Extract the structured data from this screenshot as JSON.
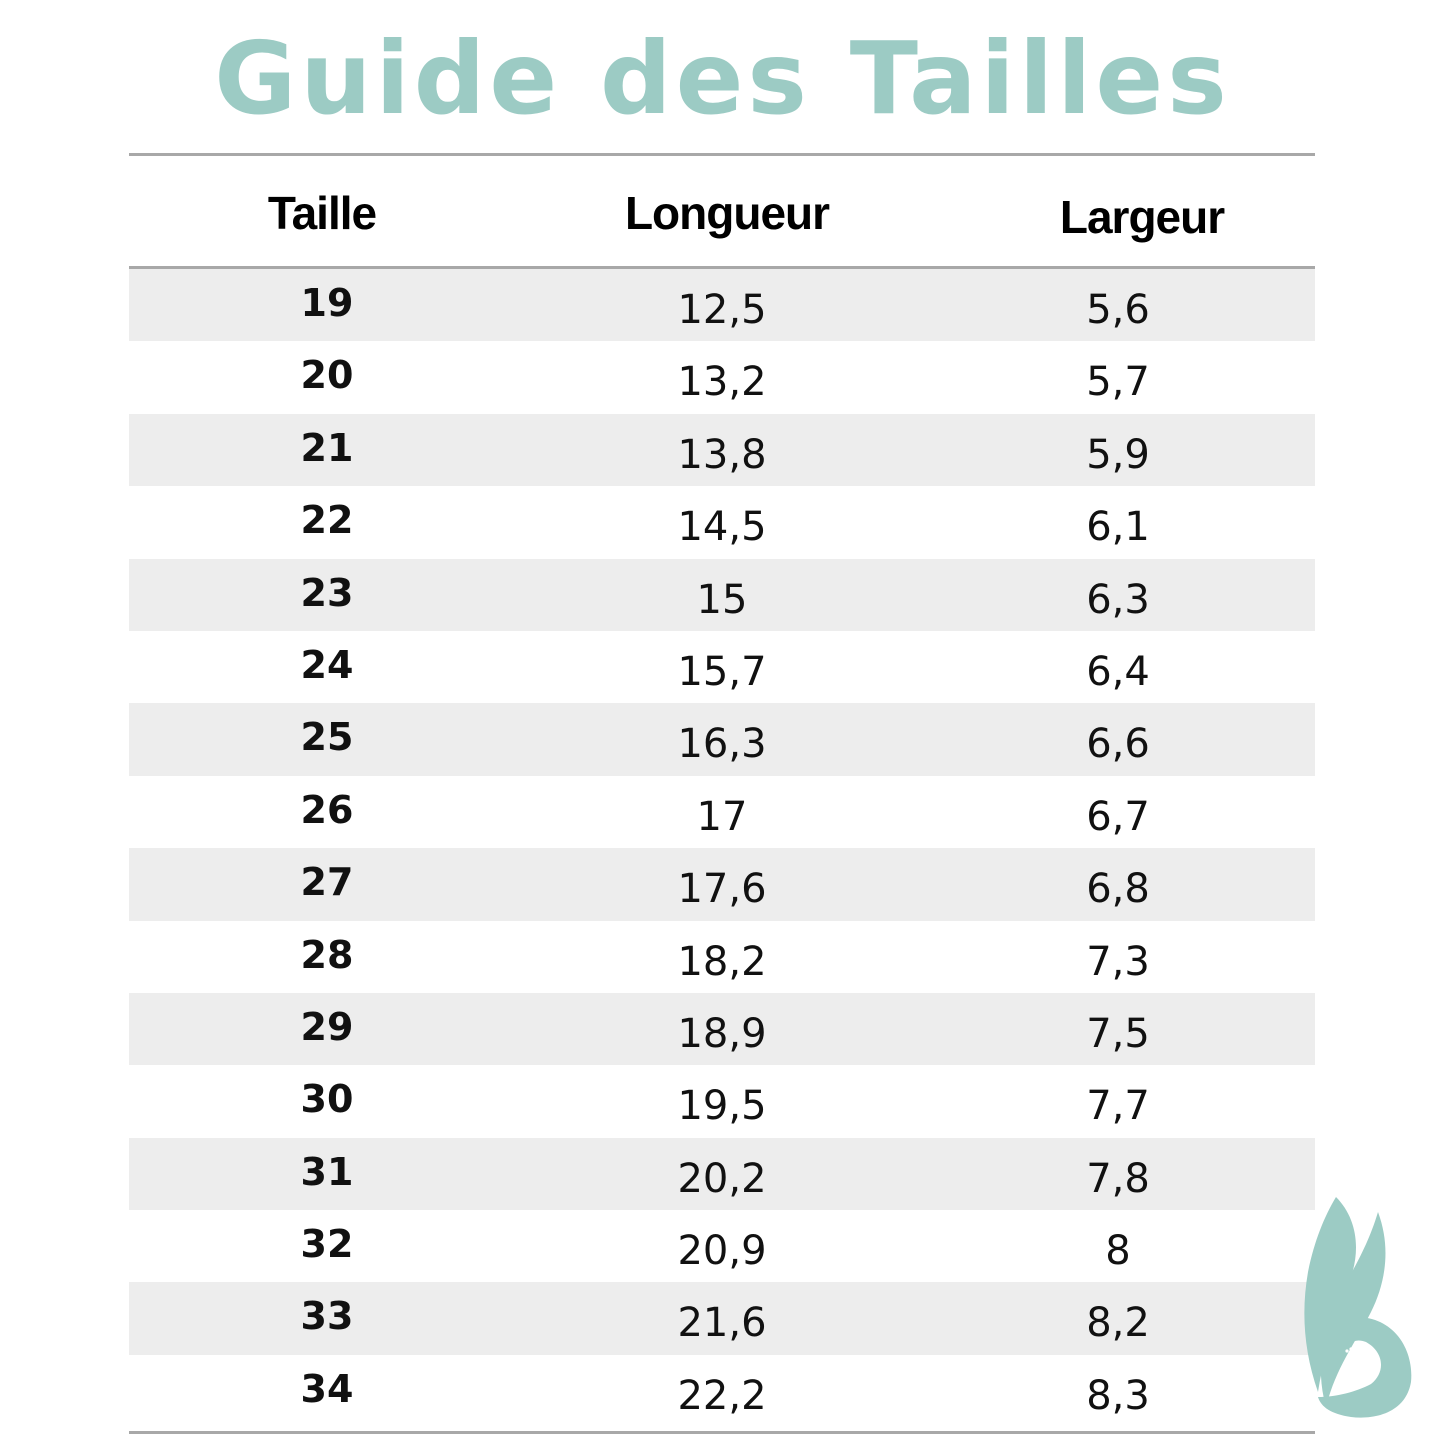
{
  "title": "Guide des Tailles",
  "colors": {
    "accent": "#9ccbc4",
    "row_shade": "#ededed",
    "rule": "#a8a8a8"
  },
  "table": {
    "headers": [
      "Taille",
      "Longueur",
      "Largeur"
    ],
    "rows": [
      [
        "19",
        "12,5",
        "5,6"
      ],
      [
        "20",
        "13,2",
        "5,7"
      ],
      [
        "21",
        "13,8",
        "5,9"
      ],
      [
        "22",
        "14,5",
        "6,1"
      ],
      [
        "23",
        "15",
        "6,3"
      ],
      [
        "24",
        "15,7",
        "6,4"
      ],
      [
        "25",
        "16,3",
        "6,6"
      ],
      [
        "26",
        "17",
        "6,7"
      ],
      [
        "27",
        "17,6",
        "6,8"
      ],
      [
        "28",
        "18,2",
        "7,3"
      ],
      [
        "29",
        "18,9",
        "7,5"
      ],
      [
        "30",
        "19,5",
        "7,7"
      ],
      [
        "31",
        "20,2",
        "7,8"
      ],
      [
        "32",
        "20,9",
        "8"
      ],
      [
        "33",
        "21,6",
        "8,2"
      ],
      [
        "34",
        "22,2",
        "8,3"
      ]
    ]
  },
  "logo": {
    "icon": "bunny-foot-logo"
  }
}
